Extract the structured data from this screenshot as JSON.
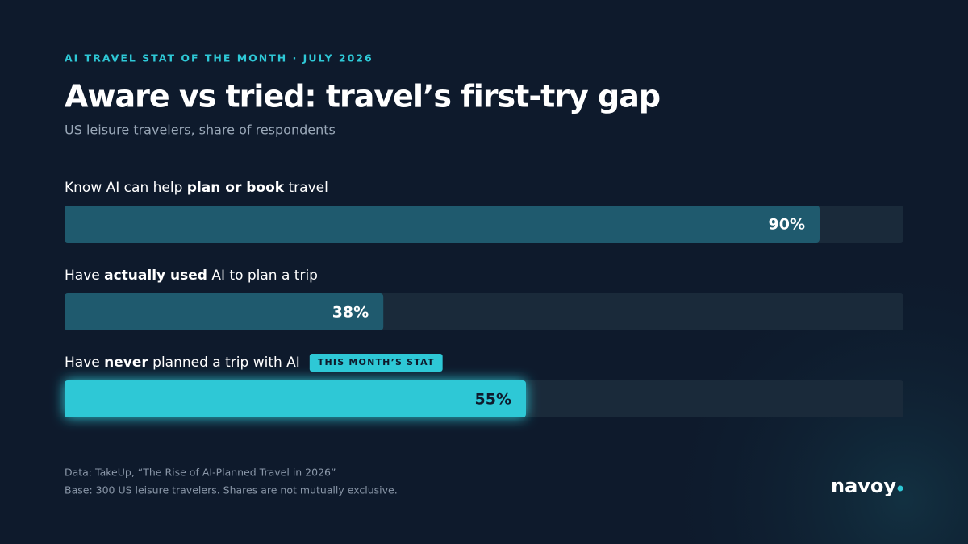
{
  "chart_data": {
    "type": "hbar",
    "kicker": "AI TRAVEL STAT OF THE MONTH · JULY 2026",
    "title": "Aware vs tried: travel’s first-try gap",
    "subtitle": "US leisure travelers, share of respondents",
    "categories": [
      [
        "Know AI can help ",
        "plan or book",
        " travel"
      ],
      [
        "Have ",
        "actually used",
        " AI to plan a trip"
      ],
      [
        "Have ",
        "never",
        " planned a trip with AI"
      ]
    ],
    "badges": [
      null,
      null,
      "THIS MONTH’S STAT"
    ],
    "values": [
      90,
      38,
      55
    ],
    "value_labels": [
      "90%",
      "38%",
      "55%"
    ],
    "colors": [
      "#1f5a6e",
      "#1f5a6e",
      "#2ec8d6"
    ],
    "label_colors": [
      "#ffffff",
      "#ffffff",
      "#0f1b2d"
    ],
    "track_color": "#1a2a3a",
    "xlim": [
      0,
      100
    ],
    "notes": [
      "Data: TakeUp, “The Rise of AI-Planned Travel in 2026”",
      "Base: 300 US leisure travelers. Shares are not mutually exclusive."
    ],
    "brand": "navoy"
  }
}
